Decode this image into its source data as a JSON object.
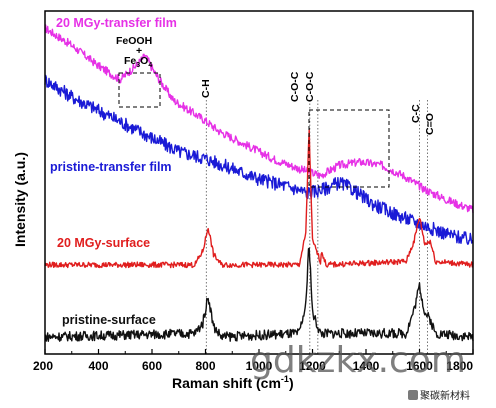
{
  "chart_data": {
    "type": "line",
    "xlabel": "Raman shift (cm",
    "xlabel_sup": "-1",
    "xlabel_close": ")",
    "ylabel": "Intensity (a.u.)",
    "xlim": [
      200,
      1800
    ],
    "x_ticks": [
      "200",
      "400",
      "600",
      "800",
      "1000",
      "1200",
      "1400",
      "1600",
      "1800"
    ],
    "grid": false,
    "series": [
      {
        "name": "20 MGy-transfer film",
        "color": "#e631e6",
        "points": [
          [
            200,
            0.95
          ],
          [
            300,
            0.9
          ],
          [
            400,
            0.84
          ],
          [
            480,
            0.8
          ],
          [
            540,
            0.84
          ],
          [
            575,
            0.87
          ],
          [
            610,
            0.82
          ],
          [
            680,
            0.74
          ],
          [
            760,
            0.7
          ],
          [
            800,
            0.68
          ],
          [
            850,
            0.65
          ],
          [
            950,
            0.61
          ],
          [
            1050,
            0.57
          ],
          [
            1150,
            0.54
          ],
          [
            1230,
            0.52
          ],
          [
            1300,
            0.55
          ],
          [
            1380,
            0.56
          ],
          [
            1460,
            0.55
          ],
          [
            1540,
            0.52
          ],
          [
            1620,
            0.48
          ],
          [
            1700,
            0.45
          ],
          [
            1800,
            0.42
          ]
        ]
      },
      {
        "name": "pristine-transfer film",
        "color": "#1a1ad6",
        "points": [
          [
            200,
            0.8
          ],
          [
            300,
            0.75
          ],
          [
            400,
            0.71
          ],
          [
            500,
            0.67
          ],
          [
            600,
            0.63
          ],
          [
            700,
            0.59
          ],
          [
            800,
            0.57
          ],
          [
            900,
            0.54
          ],
          [
            1000,
            0.51
          ],
          [
            1100,
            0.49
          ],
          [
            1180,
            0.47
          ],
          [
            1240,
            0.48
          ],
          [
            1300,
            0.5
          ],
          [
            1350,
            0.48
          ],
          [
            1420,
            0.44
          ],
          [
            1500,
            0.41
          ],
          [
            1600,
            0.38
          ],
          [
            1700,
            0.35
          ],
          [
            1800,
            0.33
          ]
        ]
      },
      {
        "name": "20 MGy-surface",
        "color": "#e01e1e",
        "points": [
          [
            200,
            0.26
          ],
          [
            760,
            0.26
          ],
          [
            790,
            0.3
          ],
          [
            810,
            0.37
          ],
          [
            830,
            0.29
          ],
          [
            860,
            0.26
          ],
          [
            1150,
            0.26
          ],
          [
            1175,
            0.35
          ],
          [
            1187,
            0.66
          ],
          [
            1200,
            0.33
          ],
          [
            1230,
            0.27
          ],
          [
            1235,
            0.3
          ],
          [
            1250,
            0.26
          ],
          [
            1550,
            0.27
          ],
          [
            1580,
            0.33
          ],
          [
            1600,
            0.4
          ],
          [
            1620,
            0.32
          ],
          [
            1640,
            0.33
          ],
          [
            1660,
            0.27
          ],
          [
            1800,
            0.26
          ]
        ]
      },
      {
        "name": "pristine-surface",
        "color": "#111111",
        "points": [
          [
            200,
            0.05
          ],
          [
            760,
            0.06
          ],
          [
            790,
            0.09
          ],
          [
            810,
            0.17
          ],
          [
            830,
            0.08
          ],
          [
            860,
            0.05
          ],
          [
            1150,
            0.06
          ],
          [
            1175,
            0.14
          ],
          [
            1187,
            0.33
          ],
          [
            1200,
            0.12
          ],
          [
            1230,
            0.06
          ],
          [
            1550,
            0.06
          ],
          [
            1580,
            0.13
          ],
          [
            1600,
            0.2
          ],
          [
            1620,
            0.12
          ],
          [
            1640,
            0.1
          ],
          [
            1660,
            0.06
          ],
          [
            1800,
            0.05
          ]
        ]
      }
    ],
    "annotations": {
      "feooh": "FeOOH",
      "plus": "+",
      "fe3o4_base": "Fe",
      "fe3o4_sub1": "3",
      "fe3o4_o": "O",
      "fe3o4_sub2": "4",
      "ch": "C-H",
      "coc1": "C-O-C",
      "coc2": "C-O-C",
      "cc": "C-C",
      "co": "C=O"
    },
    "peak_lines": [
      803,
      1190,
      1220,
      1600,
      1630
    ]
  },
  "watermark": {
    "site": "gdkzkx.com",
    "account": "聚碳新材料"
  }
}
